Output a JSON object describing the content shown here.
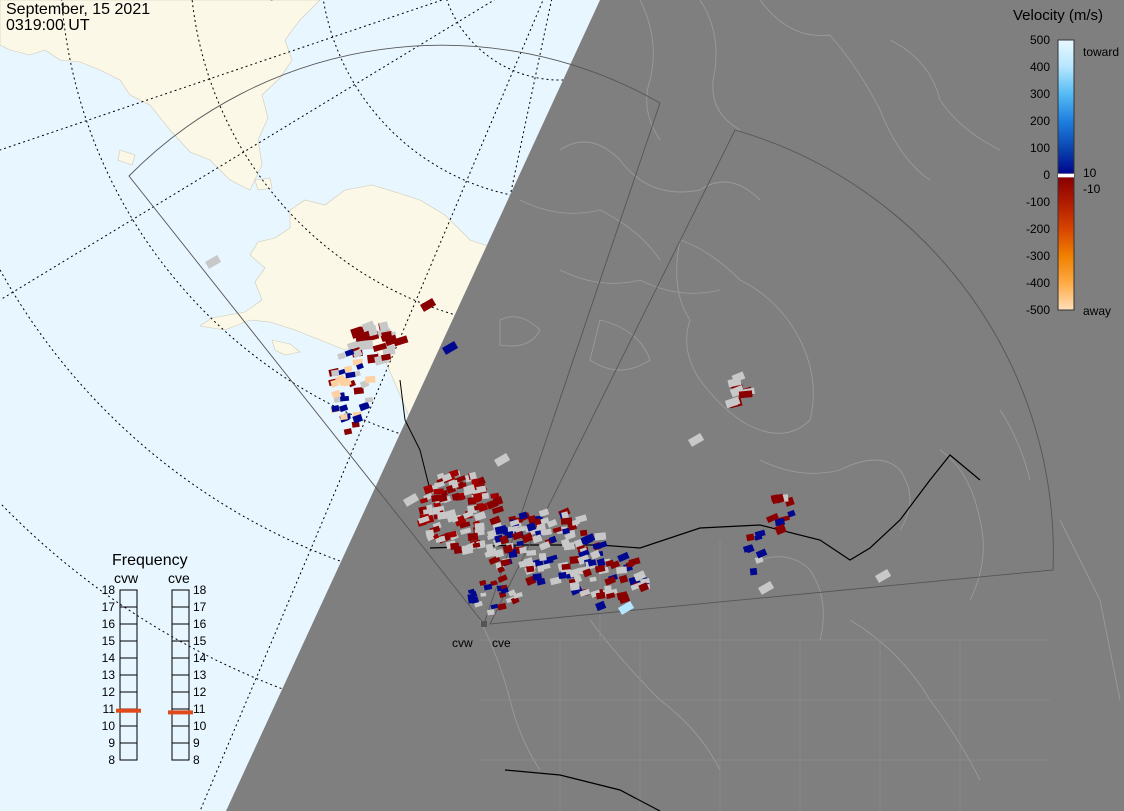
{
  "header": {
    "date": "September, 15 2021",
    "time": "0319:00 UT"
  },
  "colors": {
    "ocean_day": "#e8f6ff",
    "land_day": "#fbf8e8",
    "night": "#7f7f7f",
    "night_line": "#9a9a9a",
    "border_day": "#000000",
    "ground_scatter": "#c8c8c8",
    "frequency_marker": "#e04a1a"
  },
  "legend": {
    "title": "Velocity (m/s)",
    "toward_label": "toward",
    "away_label": "away",
    "ticks": [
      "500",
      "400",
      "300",
      "200",
      "100",
      "0",
      "-100",
      "-200",
      "-300",
      "-400",
      "-500"
    ],
    "inner_ticks": [
      "10",
      "-10"
    ],
    "scale": [
      {
        "v": 500,
        "color": "#e8f8ff"
      },
      {
        "v": 400,
        "color": "#b5e6ff"
      },
      {
        "v": 300,
        "color": "#55bbf4"
      },
      {
        "v": 200,
        "color": "#1f7fe0"
      },
      {
        "v": 100,
        "color": "#0a46b0"
      },
      {
        "v": 10,
        "color": "#000890"
      },
      {
        "v": -10,
        "color": "#8a0000"
      },
      {
        "v": -100,
        "color": "#b01a00"
      },
      {
        "v": -200,
        "color": "#d84400"
      },
      {
        "v": -300,
        "color": "#f08000"
      },
      {
        "v": -400,
        "color": "#ffaa44"
      },
      {
        "v": -500,
        "color": "#ffe0bb"
      }
    ]
  },
  "frequency": {
    "title": "Frequency",
    "radars": [
      {
        "id": "cvw",
        "label": "cvw",
        "freq_mhz": 10.9
      },
      {
        "id": "cve",
        "label": "cve",
        "freq_mhz": 10.8
      }
    ],
    "ticks": [
      "18",
      "17",
      "16",
      "15",
      "14",
      "13",
      "12",
      "11",
      "10",
      "9",
      "8"
    ]
  },
  "map": {
    "site_labels": [
      {
        "id": "cvw",
        "label": "cvw"
      },
      {
        "id": "cve",
        "label": "cve"
      }
    ]
  }
}
